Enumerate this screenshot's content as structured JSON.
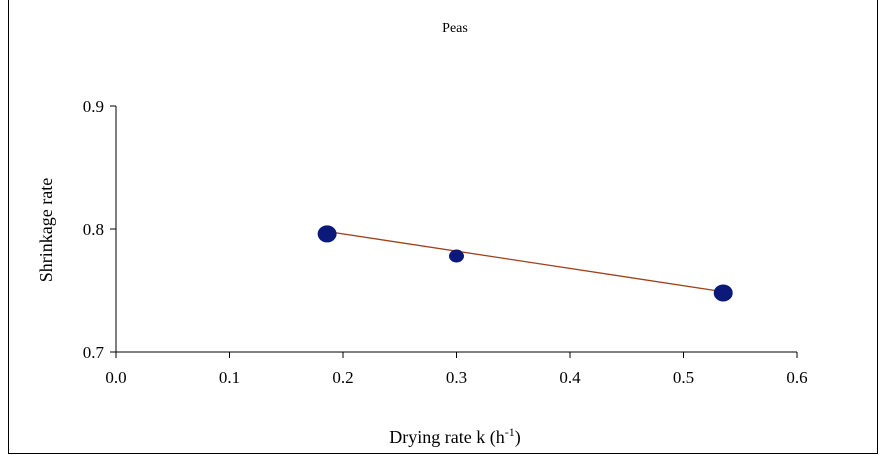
{
  "chart_data": {
    "type": "scatter",
    "title": "Peas",
    "xlabel_main": "Drying rate k (h",
    "xlabel_sup": "-1",
    "xlabel_close": ")",
    "ylabel": "Shrinkage rate",
    "xlim": [
      0.0,
      0.6
    ],
    "ylim": [
      0.7,
      0.9
    ],
    "x_ticks": [
      "0.0",
      "0.1",
      "0.2",
      "0.3",
      "0.4",
      "0.5",
      "0.6"
    ],
    "y_ticks": [
      "0.7",
      "0.8",
      "0.9"
    ],
    "grid": false,
    "series": [
      {
        "points": [
          {
            "x": 0.186,
            "y": 0.796
          },
          {
            "x": 0.3,
            "y": 0.778
          },
          {
            "x": 0.535,
            "y": 0.748
          }
        ],
        "marker_color": "#0b1a7a"
      }
    ],
    "trendline": {
      "x": [
        0.186,
        0.535
      ],
      "y": [
        0.798,
        0.749
      ],
      "color": "#a0401a"
    }
  }
}
